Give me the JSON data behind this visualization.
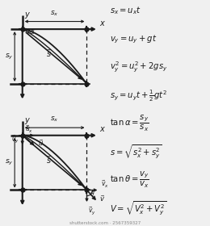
{
  "bg_color": "#f0f0f0",
  "line_color": "#1a1a1a",
  "formulas": [
    "$s_x = u_x t$",
    "$v_y = u_y + gt$",
    "$v_y^2 = u_y^2 + 2gs_y$",
    "$s_y = u_y t + \\frac{1}{2}gt^2$",
    "$\\tan\\alpha = \\dfrac{s_y}{s_x}$",
    "$s = \\sqrt{s_x^2 + s_y^2}$",
    "$\\tan\\theta = \\dfrac{v_y}{v_x}$",
    "$V = \\sqrt{V_x^2 + V_y^2}$"
  ],
  "watermark": "shutterstock.com · 2567359327"
}
